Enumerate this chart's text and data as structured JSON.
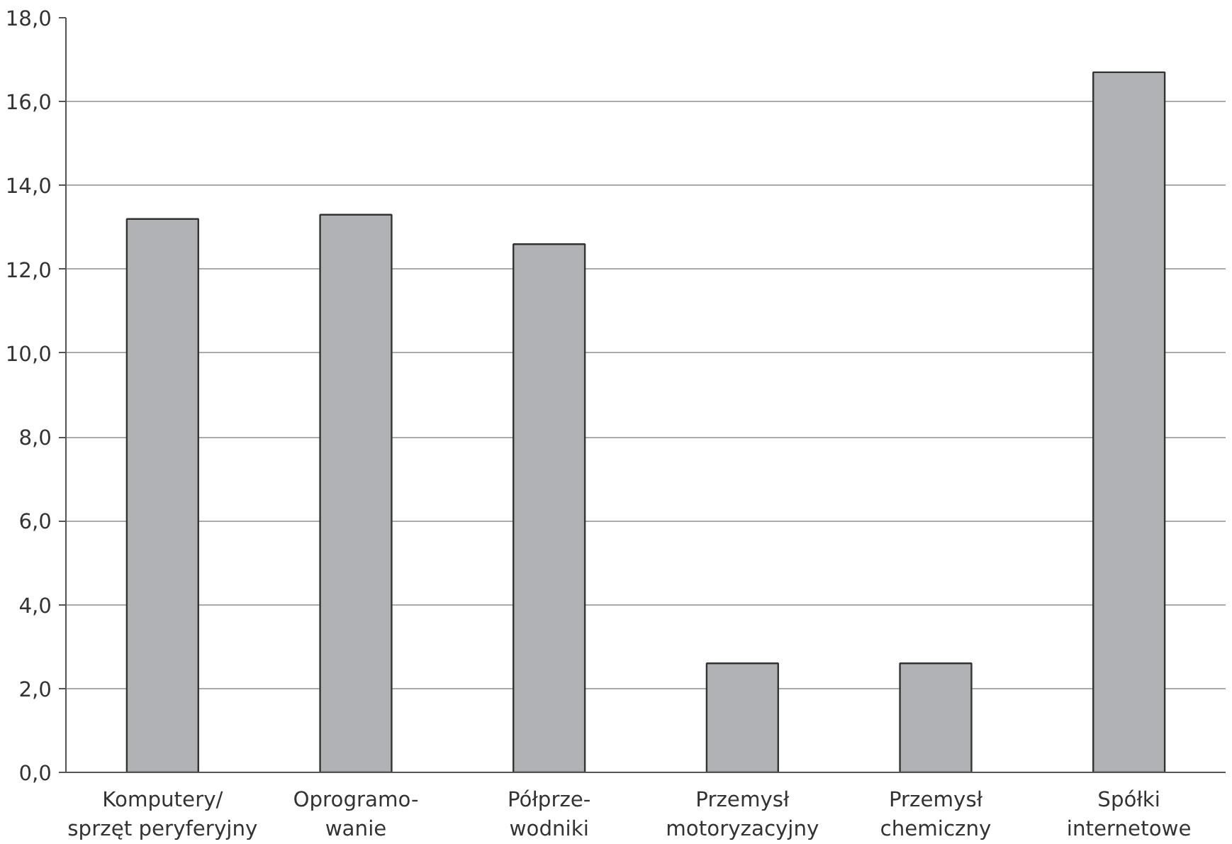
{
  "chart_data": {
    "type": "bar",
    "categories": [
      "Komputery/\nsprzęt peryferyjny",
      "Oprogramo-\nwanie",
      "Półprze-\nwodniki",
      "Przemysł\nmotoryzacyjny",
      "Przemysł\nchemiczny",
      "Spółki\ninternetowe"
    ],
    "values": [
      13.2,
      13.3,
      12.6,
      2.6,
      2.6,
      16.7
    ],
    "color": "#b1b2b5",
    "ylim": [
      0,
      18
    ],
    "yticks": [
      {
        "value": 0,
        "label": "0,0"
      },
      {
        "value": 2,
        "label": "2,0"
      },
      {
        "value": 4,
        "label": "4,0"
      },
      {
        "value": 6,
        "label": "6,0"
      },
      {
        "value": 8,
        "label": "8,0"
      },
      {
        "value": 10,
        "label": "10,0"
      },
      {
        "value": 12,
        "label": "12,0"
      },
      {
        "value": 14,
        "label": "14,0"
      },
      {
        "value": 16,
        "label": "16,0"
      },
      {
        "value": 18,
        "label": "18,0"
      }
    ],
    "grid": "y"
  }
}
